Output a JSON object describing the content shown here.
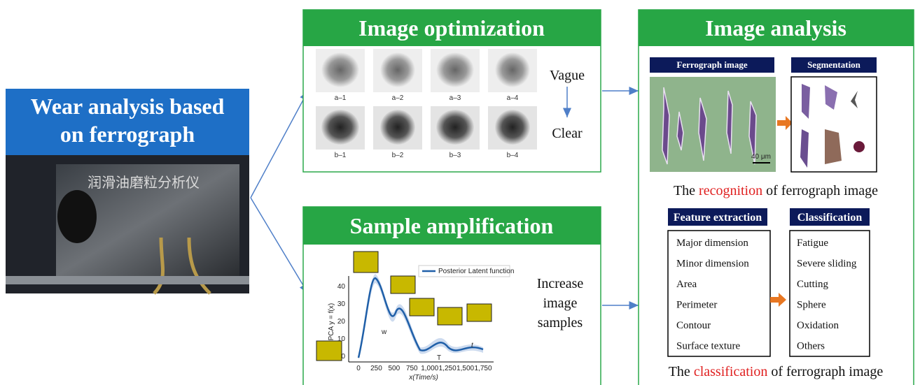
{
  "left": {
    "title_line1": "Wear analysis based",
    "title_line2": "on ferrograph",
    "device_label": "润滑油磨粒分析仪"
  },
  "optimization": {
    "title": "Image optimization",
    "samples_a": [
      "a–1",
      "a–2",
      "a–3",
      "a–4"
    ],
    "samples_b": [
      "b–1",
      "b–2",
      "b–3",
      "b–4"
    ],
    "vague": "Vague",
    "clear": "Clear"
  },
  "amplification": {
    "title": "Sample amplification",
    "note": [
      "Increase",
      "image",
      "samples"
    ],
    "plot": {
      "legend": "Posterior Latent function",
      "y_label": "IPCA y = f(x)",
      "x_label": "x(Time/s)",
      "yticks": [
        "0",
        "10",
        "20",
        "30",
        "40"
      ],
      "xticks": [
        "0",
        "250",
        "500",
        "750",
        "1,000",
        "1,250",
        "1,500",
        "1,750"
      ],
      "annotations": [
        "w",
        "T",
        "t"
      ]
    }
  },
  "analysis": {
    "title": "Image analysis",
    "ferrograph_label": "Ferrograph image",
    "scale": "40 μm",
    "segmentation_label": "Segmentation",
    "recognition": {
      "prefix": "The",
      "highlight": "recognition",
      "suffix": "of ferrograph  image"
    },
    "feature_label": "Feature extraction",
    "features": [
      "Major dimension",
      "Minor dimension",
      "Area",
      "Perimeter",
      "Contour",
      "Surface texture"
    ],
    "class_label": "Classification",
    "classes": [
      "Fatigue",
      "Severe sliding",
      "Cutting",
      "Sphere",
      "Oxidation",
      "Others"
    ],
    "classification": {
      "prefix": "The",
      "highlight": "classification",
      "suffix": "of ferrograph  image"
    }
  }
}
